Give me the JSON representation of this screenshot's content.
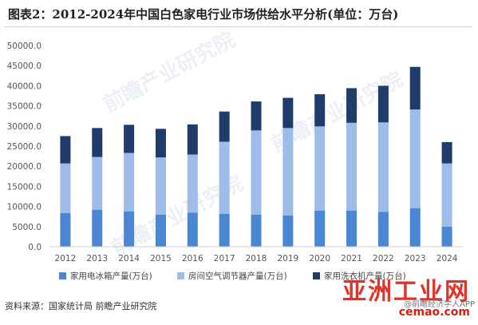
{
  "title": "图表2：2012-2024年中国白色家电行业市场供给水平分析(单位：万台)",
  "source": "资料来源：国家统计局 前瞻产业研究院",
  "watermarks": {
    "main": "亚洲工业网",
    "sub": "cemao.com",
    "note": "@前瞻经济学人APP",
    "faint": "前瞻产业研究院"
  },
  "colors": {
    "washer": "#4a86d4",
    "ac": "#9dbde8",
    "fridge": "#1f3c6b",
    "axis": "#cfcfcf",
    "tick": "#555555"
  },
  "chart_data": {
    "type": "bar",
    "stacked": true,
    "categories": [
      "2012",
      "2013",
      "2014",
      "2015",
      "2016",
      "2017",
      "2018",
      "2019",
      "2020",
      "2021",
      "2022",
      "2023",
      "2024"
    ],
    "ylim": [
      0,
      50000
    ],
    "yticks": [
      "0.0",
      "5000.0",
      "10000.0",
      "15000.0",
      "20000.0",
      "25000.0",
      "30000.0",
      "35000.0",
      "40000.0",
      "45000.0",
      "50000.0"
    ],
    "grid": false,
    "legend_position": "bottom",
    "series": [
      {
        "name": "家用电冰箱产量(万台)",
        "key": "washer",
        "values": [
          8400,
          9200,
          8800,
          8000,
          8500,
          8200,
          8000,
          7800,
          9000,
          9000,
          8700,
          9600,
          5000
        ]
      },
      {
        "name": "房间空气调节器产量(万台)",
        "key": "ac",
        "values": [
          12300,
          13100,
          14500,
          14200,
          14400,
          17900,
          20900,
          21700,
          20900,
          21800,
          22200,
          24500,
          15700
        ]
      },
      {
        "name": "家用洗衣机产量(万台)",
        "key": "fridge",
        "values": [
          6800,
          7200,
          7000,
          7100,
          7500,
          7500,
          7200,
          7500,
          8000,
          8600,
          9100,
          10600,
          5300
        ]
      }
    ]
  }
}
